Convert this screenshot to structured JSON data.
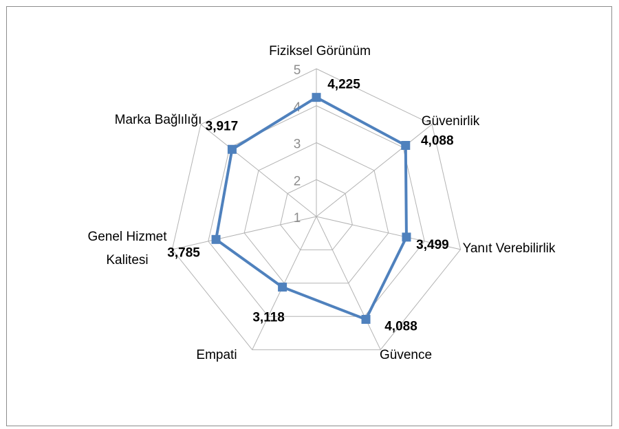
{
  "chart_data": {
    "type": "radar",
    "categories": [
      "Fiziksel Görünüm",
      "Güvenirlik",
      "Yanıt Verebilirlik",
      "Güvence",
      "Empati",
      "Genel Hizmet Kalitesi",
      "Marka Bağlılığı"
    ],
    "series": [
      {
        "name": null,
        "color": "#4f81bd",
        "values": [
          4.225,
          4.088,
          3.499,
          4.088,
          3.118,
          3.785,
          3.917
        ],
        "value_labels": [
          "4,225",
          "4,088",
          "3,499",
          "4,088",
          "3,118",
          "3,785",
          "3,917"
        ]
      }
    ],
    "ylim": [
      1,
      5
    ],
    "yticks": [
      1,
      2,
      3,
      4,
      5
    ],
    "grid": true
  }
}
